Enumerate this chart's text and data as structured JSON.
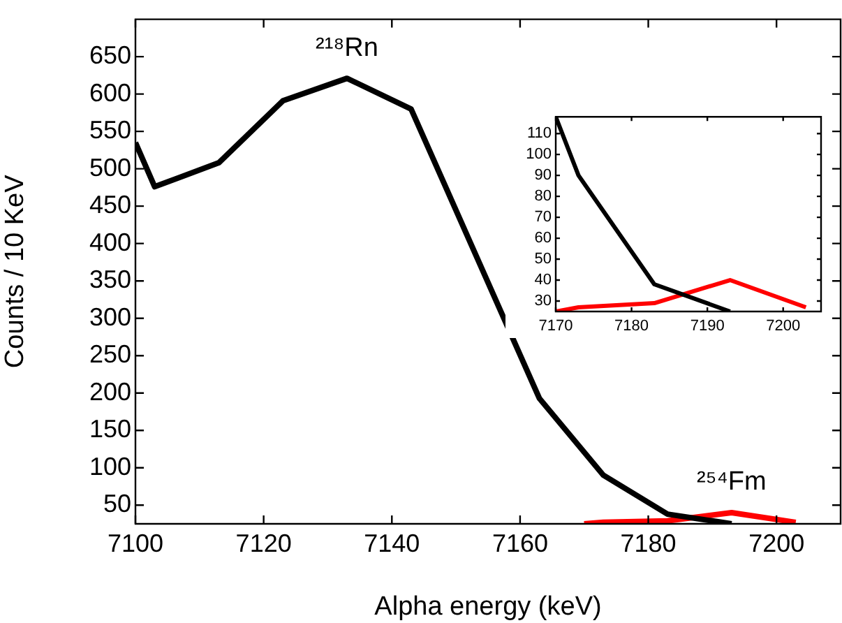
{
  "chart_data": [
    {
      "type": "line",
      "xlabel": "Alpha energy (keV)",
      "ylabel": "Counts / 10 KeV",
      "xlim": [
        7100,
        7210
      ],
      "ylim": [
        25,
        700
      ],
      "xticks": [
        7100,
        7120,
        7140,
        7160,
        7180,
        7200
      ],
      "yticks": [
        50,
        100,
        150,
        200,
        250,
        300,
        350,
        400,
        450,
        500,
        550,
        600,
        650
      ],
      "grid": false,
      "legend": false,
      "series": [
        {
          "color": "#000000",
          "x": [
            7100,
            7103,
            7113,
            7123,
            7133,
            7143,
            7163,
            7173,
            7183,
            7193
          ],
          "values": [
            535,
            476,
            508,
            591,
            621,
            580,
            193,
            90,
            38,
            25
          ]
        },
        {
          "color": "#ff0000",
          "x": [
            7170,
            7173,
            7183,
            7193,
            7203
          ],
          "values": [
            25,
            27,
            29,
            40,
            27
          ]
        }
      ],
      "annotations": [
        {
          "text": "²¹⁸Rn",
          "x": 7133,
          "y": 621
        },
        {
          "text": "²⁵⁴Fm",
          "x": 7193,
          "y": 40
        }
      ]
    },
    {
      "type": "line",
      "xlim": [
        7170,
        7205
      ],
      "ylim": [
        25,
        118
      ],
      "xticks": [
        7170,
        7180,
        7190,
        7200
      ],
      "yticks": [
        30,
        40,
        50,
        60,
        70,
        80,
        90,
        100,
        110
      ],
      "grid": false,
      "legend": false,
      "series": [
        {
          "color": "#000000",
          "x": [
            7170,
            7173,
            7183,
            7193
          ],
          "values": [
            118,
            90,
            38,
            25
          ]
        },
        {
          "color": "#ff0000",
          "x": [
            7170,
            7173,
            7183,
            7193,
            7203
          ],
          "values": [
            25,
            27,
            29,
            40,
            27
          ]
        }
      ]
    }
  ]
}
